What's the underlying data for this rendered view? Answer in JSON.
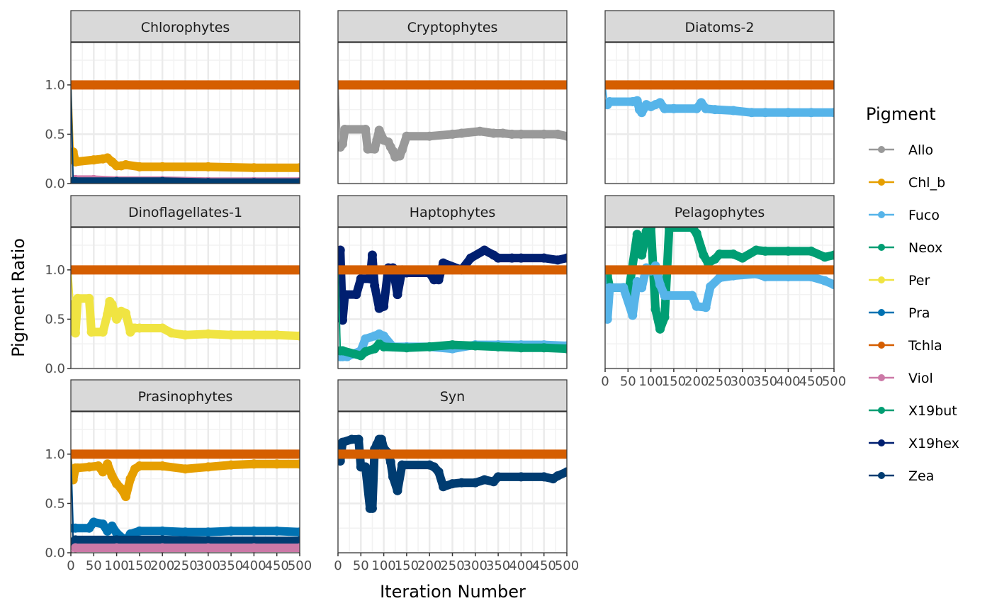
{
  "chart_data": {
    "type": "line",
    "layout": "facet-grid 3x3",
    "xlabel": "Iteration Number",
    "ylabel": "Pigment Ratio",
    "xlim": [
      0,
      500
    ],
    "ylim": [
      0,
      1.43
    ],
    "x_ticks": [
      "0",
      "50",
      "100",
      "150",
      "200",
      "250",
      "300",
      "350",
      "400",
      "450",
      "500"
    ],
    "y_ticks": [
      "0.0",
      "0.5",
      "1.0"
    ],
    "grid": true,
    "legend": {
      "title": "Pigment",
      "position": "right",
      "entries": [
        {
          "name": "Allo",
          "color": "#999999"
        },
        {
          "name": "Chl_b",
          "color": "#E69F00"
        },
        {
          "name": "Fuco",
          "color": "#56B4E9"
        },
        {
          "name": "Neox",
          "color": "#009E73"
        },
        {
          "name": "Per",
          "color": "#F0E442"
        },
        {
          "name": "Pra",
          "color": "#0072B2"
        },
        {
          "name": "Tchla",
          "color": "#D55E00"
        },
        {
          "name": "Viol",
          "color": "#CC79A7"
        },
        {
          "name": "X19but",
          "color": "#009E73"
        },
        {
          "name": "X19hex",
          "color": "#001F70"
        },
        {
          "name": "Zea",
          "color": "#003C71"
        }
      ]
    },
    "panels": [
      {
        "title": "Chlorophytes",
        "series": [
          {
            "name": "Tchla",
            "x": [
              0,
              500
            ],
            "y": [
              1.0,
              1.0
            ]
          },
          {
            "name": "Chl_b",
            "x": [
              0,
              5,
              10,
              50,
              70,
              80,
              90,
              100,
              110,
              120,
              150,
              200,
              300,
              400,
              500
            ],
            "y": [
              1.0,
              0.32,
              0.22,
              0.24,
              0.25,
              0.26,
              0.22,
              0.18,
              0.18,
              0.19,
              0.17,
              0.17,
              0.17,
              0.16,
              0.16
            ]
          },
          {
            "name": "Viol",
            "x": [
              0,
              10,
              50,
              100,
              200,
              300,
              400,
              500
            ],
            "y": [
              0.0,
              0.04,
              0.04,
              0.03,
              0.03,
              0.02,
              0.02,
              0.02
            ]
          },
          {
            "name": "Zea",
            "x": [
              0,
              5,
              10,
              100,
              200,
              300,
              400,
              500
            ],
            "y": [
              1.0,
              0.02,
              0.02,
              0.02,
              0.02,
              0.01,
              0.01,
              0.01
            ]
          }
        ]
      },
      {
        "title": "Cryptophytes",
        "series": [
          {
            "name": "Tchla",
            "x": [
              0,
              500
            ],
            "y": [
              1.0,
              1.0
            ]
          },
          {
            "name": "Allo",
            "x": [
              0,
              5,
              10,
              15,
              60,
              65,
              80,
              85,
              90,
              100,
              110,
              115,
              120,
              125,
              135,
              140,
              150,
              200,
              250,
              270,
              310,
              340,
              360,
              380,
              400,
              450,
              480,
              500
            ],
            "y": [
              1.0,
              0.37,
              0.4,
              0.55,
              0.55,
              0.35,
              0.35,
              0.44,
              0.54,
              0.44,
              0.42,
              0.37,
              0.33,
              0.27,
              0.28,
              0.34,
              0.48,
              0.48,
              0.5,
              0.51,
              0.53,
              0.51,
              0.51,
              0.5,
              0.5,
              0.5,
              0.5,
              0.48
            ]
          }
        ]
      },
      {
        "title": "Diatoms-2",
        "series": [
          {
            "name": "Tchla",
            "x": [
              0,
              500
            ],
            "y": [
              1.0,
              1.0
            ]
          },
          {
            "name": "Fuco",
            "x": [
              0,
              5,
              10,
              60,
              70,
              75,
              80,
              90,
              100,
              110,
              120,
              130,
              150,
              200,
              210,
              220,
              240,
              280,
              320,
              350,
              400,
              450,
              500
            ],
            "y": [
              1.0,
              0.8,
              0.83,
              0.83,
              0.84,
              0.75,
              0.72,
              0.8,
              0.78,
              0.8,
              0.82,
              0.76,
              0.76,
              0.76,
              0.82,
              0.76,
              0.75,
              0.74,
              0.72,
              0.72,
              0.72,
              0.72,
              0.72
            ]
          }
        ]
      },
      {
        "title": "Dinoflagellates-1",
        "series": [
          {
            "name": "Tchla",
            "x": [
              0,
              500
            ],
            "y": [
              1.0,
              1.0
            ]
          },
          {
            "name": "Per",
            "x": [
              0,
              5,
              10,
              15,
              40,
              45,
              70,
              80,
              85,
              90,
              100,
              110,
              120,
              130,
              135,
              140,
              150,
              200,
              220,
              250,
              300,
              350,
              400,
              450,
              500
            ],
            "y": [
              1.0,
              0.65,
              0.36,
              0.71,
              0.71,
              0.37,
              0.37,
              0.55,
              0.68,
              0.65,
              0.5,
              0.58,
              0.56,
              0.37,
              0.41,
              0.41,
              0.41,
              0.41,
              0.36,
              0.34,
              0.35,
              0.34,
              0.34,
              0.34,
              0.33
            ]
          }
        ]
      },
      {
        "title": "Haptophytes",
        "series": [
          {
            "name": "Tchla",
            "x": [
              0,
              500
            ],
            "y": [
              1.0,
              1.0
            ]
          },
          {
            "name": "X19hex",
            "x": [
              0,
              5,
              10,
              15,
              40,
              50,
              70,
              75,
              80,
              90,
              100,
              110,
              120,
              130,
              140,
              150,
              200,
              210,
              220,
              230,
              270,
              290,
              320,
              340,
              350,
              380,
              400,
              450,
              480,
              500
            ],
            "y": [
              1.0,
              1.2,
              0.49,
              0.75,
              0.75,
              0.91,
              0.91,
              1.15,
              0.84,
              0.61,
              0.63,
              1.02,
              1.02,
              0.75,
              1.0,
              0.97,
              0.97,
              0.9,
              0.9,
              1.07,
              1.0,
              1.12,
              1.2,
              1.15,
              1.12,
              1.12,
              1.12,
              1.12,
              1.1,
              1.12
            ]
          },
          {
            "name": "Fuco",
            "x": [
              0,
              5,
              10,
              20,
              50,
              60,
              80,
              90,
              100,
              120,
              150,
              200,
              250,
              300,
              350,
              400,
              450,
              500
            ],
            "y": [
              1.0,
              0.12,
              0.12,
              0.12,
              0.18,
              0.3,
              0.33,
              0.35,
              0.33,
              0.22,
              0.22,
              0.22,
              0.2,
              0.24,
              0.24,
              0.24,
              0.24,
              0.23
            ]
          },
          {
            "name": "X19but",
            "x": [
              0,
              5,
              10,
              50,
              60,
              80,
              90,
              100,
              150,
              200,
              250,
              300,
              350,
              400,
              450,
              500
            ],
            "y": [
              1.0,
              0.18,
              0.18,
              0.13,
              0.17,
              0.2,
              0.25,
              0.22,
              0.21,
              0.22,
              0.24,
              0.23,
              0.22,
              0.21,
              0.21,
              0.2
            ]
          }
        ]
      },
      {
        "title": "Pelagophytes",
        "series": [
          {
            "name": "Tchla",
            "x": [
              0,
              500
            ],
            "y": [
              1.0,
              1.0
            ]
          },
          {
            "name": "Neox",
            "x": [
              0,
              5,
              10,
              40,
              50,
              70,
              80,
              90,
              100,
              110,
              120,
              130,
              140,
              190,
              200,
              215,
              225,
              240,
              250,
              280,
              300,
              330,
              350,
              400,
              450,
              480,
              500
            ],
            "y": [
              1.0,
              0.94,
              0.82,
              0.82,
              0.73,
              1.36,
              1.15,
              1.39,
              1.43,
              0.6,
              0.4,
              0.52,
              1.43,
              1.43,
              1.37,
              1.15,
              1.07,
              1.11,
              1.16,
              1.16,
              1.12,
              1.2,
              1.19,
              1.19,
              1.19,
              1.13,
              1.15
            ]
          },
          {
            "name": "Fuco",
            "x": [
              0,
              5,
              10,
              40,
              60,
              70,
              80,
              90,
              100,
              110,
              120,
              130,
              190,
              200,
              220,
              230,
              250,
              280,
              330,
              350,
              400,
              450,
              480,
              500
            ],
            "y": [
              1.0,
              0.5,
              0.82,
              0.82,
              0.54,
              0.88,
              0.82,
              1.02,
              0.99,
              1.04,
              0.85,
              0.74,
              0.74,
              0.63,
              0.62,
              0.83,
              0.92,
              0.94,
              0.96,
              0.93,
              0.93,
              0.93,
              0.89,
              0.85
            ]
          }
        ]
      },
      {
        "title": "Prasinophytes",
        "series": [
          {
            "name": "Tchla",
            "x": [
              0,
              500
            ],
            "y": [
              1.0,
              1.0
            ]
          },
          {
            "name": "Chl_b",
            "x": [
              0,
              5,
              10,
              15,
              40,
              60,
              70,
              80,
              90,
              100,
              110,
              120,
              130,
              140,
              150,
              200,
              250,
              300,
              350,
              400,
              450,
              500
            ],
            "y": [
              1.0,
              0.74,
              0.86,
              0.86,
              0.87,
              0.88,
              0.82,
              0.9,
              0.78,
              0.7,
              0.65,
              0.57,
              0.75,
              0.85,
              0.88,
              0.88,
              0.85,
              0.87,
              0.89,
              0.9,
              0.9,
              0.9
            ]
          },
          {
            "name": "Pra",
            "x": [
              0,
              5,
              10,
              40,
              50,
              70,
              80,
              90,
              100,
              120,
              130,
              150,
              200,
              250,
              300,
              350,
              400,
              450,
              500
            ],
            "y": [
              1.0,
              0.25,
              0.25,
              0.25,
              0.31,
              0.29,
              0.22,
              0.27,
              0.2,
              0.12,
              0.19,
              0.22,
              0.22,
              0.21,
              0.21,
              0.22,
              0.22,
              0.22,
              0.21
            ]
          },
          {
            "name": "Zea",
            "x": [
              0,
              5,
              10,
              100,
              200,
              300,
              400,
              500
            ],
            "y": [
              1.0,
              0.1,
              0.13,
              0.13,
              0.13,
              0.12,
              0.12,
              0.12
            ]
          },
          {
            "name": "Viol",
            "x": [
              0,
              10,
              100,
              200,
              300,
              400,
              500
            ],
            "y": [
              0.0,
              0.05,
              0.05,
              0.05,
              0.05,
              0.05,
              0.05
            ]
          }
        ]
      },
      {
        "title": "Syn",
        "series": [
          {
            "name": "Tchla",
            "x": [
              0,
              500
            ],
            "y": [
              1.0,
              1.0
            ]
          },
          {
            "name": "Zea",
            "x": [
              0,
              5,
              10,
              30,
              45,
              50,
              60,
              70,
              75,
              80,
              85,
              90,
              95,
              100,
              110,
              115,
              120,
              130,
              140,
              200,
              210,
              220,
              230,
              250,
              270,
              300,
              320,
              340,
              350,
              400,
              450,
              470,
              480,
              500
            ],
            "y": [
              1.0,
              0.93,
              1.12,
              1.15,
              1.15,
              0.87,
              0.87,
              0.45,
              0.45,
              1.05,
              1.1,
              1.15,
              1.15,
              1.06,
              1.01,
              0.92,
              0.77,
              0.63,
              0.89,
              0.89,
              0.87,
              0.82,
              0.67,
              0.7,
              0.71,
              0.71,
              0.74,
              0.72,
              0.77,
              0.77,
              0.77,
              0.75,
              0.78,
              0.82
            ]
          }
        ]
      }
    ]
  }
}
